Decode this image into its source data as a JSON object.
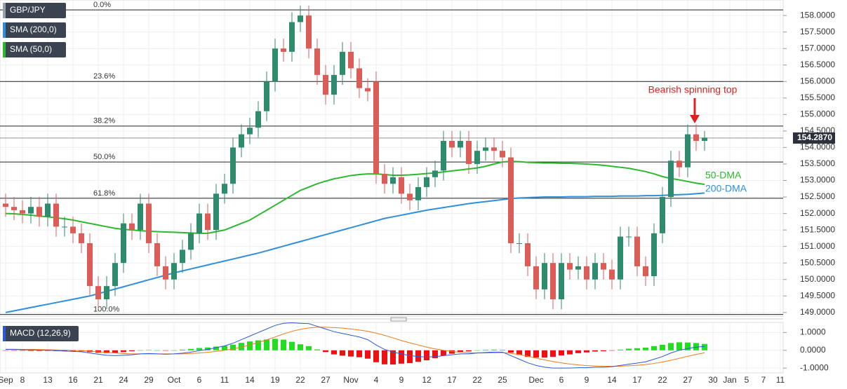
{
  "chart_data": {
    "type": "candlestick",
    "grid": true,
    "categories": [
      "Sep",
      null,
      "8",
      null,
      null,
      "13",
      null,
      null,
      "16",
      null,
      null,
      "21",
      null,
      null,
      "24",
      null,
      null,
      "29",
      null,
      null,
      "Oct",
      null,
      null,
      "6",
      null,
      null,
      "11",
      null,
      null,
      "14",
      null,
      null,
      "19",
      null,
      null,
      "22",
      null,
      null,
      "27",
      null,
      null,
      "Nov",
      null,
      null,
      "4",
      null,
      null,
      "9",
      null,
      null,
      "12",
      null,
      null,
      "17",
      null,
      null,
      "22",
      null,
      null,
      "25",
      null,
      null,
      null,
      "Dec",
      null,
      null,
      "6",
      null,
      null,
      "9",
      null,
      null,
      "14",
      null,
      null,
      "17",
      null,
      null,
      "22",
      null,
      null,
      "27",
      null,
      null,
      "30",
      null,
      "Jan",
      null,
      "5",
      null,
      "7",
      null,
      "11"
    ],
    "ohlc": {
      "name": "GBP/JPY",
      "up_color": "#2e8b6e",
      "down_color": "#dc5c57",
      "open": [
        152.3,
        152.2,
        152.1,
        152.0,
        152.2,
        151.9,
        152.3,
        151.6,
        151.6,
        151.4,
        151.1,
        149.8,
        149.4,
        149.8,
        150.5,
        151.7,
        151.5,
        152.3,
        151.1,
        150.4,
        150.0,
        150.5,
        150.9,
        151.4,
        152.0,
        151.5,
        152.6,
        152.9,
        154.0,
        154.4,
        154.6,
        155.1,
        156.0,
        157.0,
        156.9,
        157.8,
        158.0,
        157.0,
        156.2,
        155.6,
        156.2,
        156.9,
        156.4,
        155.8,
        156.0,
        153.2,
        152.9,
        153.1,
        152.6,
        152.4,
        152.8,
        153.1,
        153.3,
        154.2,
        154.0,
        154.2,
        153.5,
        153.9,
        154.0,
        153.9,
        153.7,
        151.1,
        151.1,
        150.4,
        149.7,
        150.5,
        149.4,
        150.5,
        150.3,
        150.4,
        150.0,
        150.5,
        150.3,
        150.0,
        151.3,
        151.3,
        150.4,
        150.1,
        151.4,
        152.5,
        153.6,
        153.4,
        154.4,
        154.2,
        null,
        null,
        null,
        null,
        null,
        null,
        null,
        null,
        null
      ],
      "high": [
        152.6,
        152.5,
        152.4,
        152.5,
        152.5,
        152.6,
        152.6,
        151.9,
        151.9,
        151.7,
        151.4,
        150.1,
        150.1,
        150.8,
        152.0,
        152.0,
        152.6,
        152.6,
        151.4,
        150.7,
        150.8,
        151.2,
        151.7,
        152.3,
        152.3,
        152.9,
        153.2,
        154.3,
        154.7,
        154.9,
        155.4,
        156.3,
        157.3,
        157.3,
        158.1,
        158.3,
        158.3,
        157.3,
        156.5,
        156.5,
        157.2,
        157.2,
        156.7,
        156.1,
        156.3,
        153.5,
        153.4,
        153.4,
        152.9,
        153.1,
        153.4,
        153.6,
        154.5,
        154.5,
        154.5,
        154.5,
        154.2,
        154.3,
        154.3,
        154.2,
        154.0,
        151.4,
        151.4,
        150.7,
        150.8,
        150.8,
        150.8,
        150.8,
        150.7,
        150.7,
        150.8,
        150.8,
        150.6,
        151.6,
        151.6,
        151.6,
        150.7,
        151.7,
        152.8,
        153.9,
        153.9,
        154.7,
        154.7,
        154.5,
        null,
        null,
        null,
        null,
        null,
        null,
        null,
        null,
        null
      ],
      "low": [
        151.9,
        151.8,
        151.7,
        151.7,
        151.6,
        151.6,
        151.3,
        151.3,
        151.1,
        150.8,
        149.5,
        149.1,
        149.1,
        149.5,
        150.2,
        151.2,
        151.2,
        150.8,
        150.1,
        149.7,
        149.7,
        150.2,
        150.6,
        151.1,
        151.2,
        151.2,
        152.3,
        152.6,
        153.7,
        154.1,
        154.3,
        154.8,
        155.7,
        156.6,
        156.6,
        157.5,
        156.7,
        155.9,
        155.3,
        155.3,
        155.9,
        156.1,
        155.5,
        155.4,
        152.9,
        152.6,
        152.6,
        152.3,
        152.1,
        152.1,
        152.5,
        152.8,
        153.0,
        153.7,
        153.7,
        153.2,
        153.2,
        153.6,
        153.6,
        153.4,
        150.8,
        150.8,
        150.1,
        149.4,
        149.4,
        149.1,
        149.1,
        150.0,
        150.0,
        149.7,
        149.7,
        150.0,
        149.7,
        149.7,
        151.0,
        150.1,
        149.8,
        149.8,
        151.1,
        152.2,
        153.1,
        153.1,
        153.9,
        153.9,
        null,
        null,
        null,
        null,
        null,
        null,
        null,
        null,
        null
      ],
      "close": [
        152.2,
        152.1,
        152.0,
        152.2,
        151.9,
        152.3,
        151.6,
        151.6,
        151.4,
        151.1,
        149.8,
        149.4,
        149.8,
        150.5,
        151.7,
        151.5,
        152.3,
        151.1,
        150.4,
        150.0,
        150.5,
        150.9,
        151.4,
        152.0,
        151.5,
        152.6,
        152.9,
        154.0,
        154.4,
        154.6,
        155.1,
        156.0,
        157.0,
        156.9,
        157.8,
        158.0,
        157.0,
        156.2,
        155.6,
        156.2,
        156.9,
        156.4,
        155.8,
        155.7,
        153.2,
        152.9,
        153.1,
        152.6,
        152.4,
        152.8,
        153.1,
        153.3,
        154.2,
        154.0,
        154.2,
        153.5,
        153.9,
        154.0,
        153.9,
        153.7,
        151.1,
        151.1,
        150.4,
        149.7,
        150.5,
        149.4,
        150.5,
        150.3,
        150.4,
        150.0,
        150.5,
        150.3,
        150.0,
        151.3,
        151.3,
        150.4,
        150.1,
        151.4,
        152.5,
        153.6,
        153.4,
        154.4,
        154.2,
        154.3,
        null,
        null,
        null,
        null,
        null,
        null,
        null,
        null,
        null
      ]
    },
    "series": [
      {
        "name": "SMA (200,0)",
        "color": "#2f8fdc",
        "values": [
          149.0,
          149.05,
          149.1,
          149.15,
          149.2,
          149.25,
          149.3,
          149.35,
          149.4,
          149.45,
          149.5,
          149.57,
          149.64,
          149.71,
          149.78,
          149.85,
          149.92,
          149.99,
          150.06,
          150.13,
          150.2,
          150.26,
          150.32,
          150.38,
          150.44,
          150.5,
          150.56,
          150.62,
          150.68,
          150.74,
          150.8,
          150.87,
          150.94,
          151.01,
          151.08,
          151.15,
          151.22,
          151.29,
          151.36,
          151.43,
          151.5,
          151.57,
          151.64,
          151.71,
          151.78,
          151.85,
          151.9,
          151.95,
          152.0,
          152.05,
          152.1,
          152.14,
          152.18,
          152.22,
          152.26,
          152.3,
          152.33,
          152.36,
          152.39,
          152.42,
          152.45,
          152.47,
          152.48,
          152.49,
          152.5,
          152.5,
          152.5,
          152.51,
          152.51,
          152.51,
          152.52,
          152.52,
          152.52,
          152.53,
          152.53,
          152.53,
          152.54,
          152.54,
          152.55,
          152.56,
          152.57,
          152.58,
          152.6,
          152.62,
          null,
          null,
          null,
          null,
          null,
          null,
          null,
          null,
          null
        ]
      },
      {
        "name": "SMA (50,0)",
        "color": "#2db82d",
        "values": [
          152.0,
          151.99,
          151.97,
          151.95,
          151.92,
          151.9,
          151.87,
          151.84,
          151.8,
          151.75,
          151.7,
          151.65,
          151.6,
          151.55,
          151.52,
          151.5,
          151.48,
          151.46,
          151.45,
          151.44,
          151.43,
          151.42,
          151.41,
          151.4,
          151.4,
          151.45,
          151.5,
          151.6,
          151.7,
          151.8,
          151.95,
          152.1,
          152.25,
          152.4,
          152.55,
          152.7,
          152.8,
          152.9,
          152.98,
          153.05,
          153.1,
          153.15,
          153.18,
          153.2,
          153.2,
          153.18,
          153.16,
          153.16,
          153.17,
          153.19,
          153.21,
          153.23,
          153.26,
          153.29,
          153.32,
          153.35,
          153.38,
          153.43,
          153.5,
          153.56,
          153.58,
          153.57,
          153.55,
          153.54,
          153.53,
          153.53,
          153.52,
          153.52,
          153.51,
          153.5,
          153.48,
          153.46,
          153.43,
          153.4,
          153.37,
          153.32,
          153.27,
          153.2,
          153.12,
          153.06,
          153.02,
          152.97,
          152.92,
          152.88,
          null,
          null,
          null,
          null,
          null,
          null,
          null,
          null,
          null
        ]
      }
    ],
    "ylim": [
      148.89,
      158.47
    ],
    "yticks": [
      {
        "value": 149,
        "label": "149.0000"
      },
      {
        "value": 149.5,
        "label": "149.5000"
      },
      {
        "value": 150,
        "label": "150.0000"
      },
      {
        "value": 150.5,
        "label": "150.5000"
      },
      {
        "value": 151,
        "label": "151.0000"
      },
      {
        "value": 151.5,
        "label": "151.5000"
      },
      {
        "value": 152,
        "label": "152.0000"
      },
      {
        "value": 152.5,
        "label": "152.5000"
      },
      {
        "value": 153,
        "label": "153.0000"
      },
      {
        "value": 153.5,
        "label": "153.5000"
      },
      {
        "value": 154,
        "label": "154.0000"
      },
      {
        "value": 154.5,
        "label": "154.5000"
      },
      {
        "value": 155,
        "label": "155.0000"
      },
      {
        "value": 155.5,
        "label": "155.5000"
      },
      {
        "value": 156,
        "label": "156.0000"
      },
      {
        "value": 156.5,
        "label": "156.5000"
      },
      {
        "value": 157,
        "label": "157.0000"
      },
      {
        "value": 157.5,
        "label": "157.5000"
      },
      {
        "value": 158,
        "label": "158.0000"
      }
    ],
    "last_price": {
      "value": 154.287,
      "label": "154.2870"
    },
    "fib_levels": [
      {
        "label": "0.0%",
        "value": 158.17
      },
      {
        "label": "23.6%",
        "value": 156.0
      },
      {
        "label": "38.2%",
        "value": 154.65
      },
      {
        "label": "50.0%",
        "value": 153.56
      },
      {
        "label": "61.8%",
        "value": 152.46
      },
      {
        "label": "100.0%",
        "value": 148.94
      }
    ],
    "annotations": [
      {
        "text": "Bearish spinning top",
        "color": "#e02020"
      },
      {
        "text": "50-DMA",
        "color": "#2db82d"
      },
      {
        "text": "200-DMA",
        "color": "#2f8fdc"
      }
    ],
    "macd": {
      "type": "macd",
      "name": "MACD (12,26,9)",
      "ylim": [
        -1.27,
        1.57
      ],
      "yticks": [
        {
          "value": 1,
          "label": "1.0000"
        },
        {
          "value": 0,
          "label": "0.0000"
        },
        {
          "value": -1,
          "label": "-1.0000"
        }
      ],
      "macd_line": {
        "color": "#2a5ad8",
        "values": [
          0.05,
          0.04,
          0.03,
          0.02,
          0.01,
          0.0,
          -0.02,
          -0.04,
          -0.06,
          -0.08,
          -0.15,
          -0.22,
          -0.28,
          -0.3,
          -0.28,
          -0.25,
          -0.2,
          -0.18,
          -0.2,
          -0.22,
          -0.2,
          -0.16,
          -0.1,
          -0.02,
          0.05,
          0.15,
          0.25,
          0.4,
          0.6,
          0.8,
          1.0,
          1.2,
          1.4,
          1.52,
          1.55,
          1.52,
          1.5,
          1.35,
          1.2,
          1.05,
          0.95,
          0.85,
          0.75,
          0.6,
          0.3,
          0.05,
          -0.1,
          -0.2,
          -0.3,
          -0.35,
          -0.38,
          -0.36,
          -0.3,
          -0.25,
          -0.2,
          -0.2,
          -0.15,
          -0.12,
          -0.1,
          -0.1,
          -0.3,
          -0.5,
          -0.7,
          -0.85,
          -0.95,
          -1.0,
          -1.0,
          -1.0,
          -0.98,
          -0.98,
          -0.95,
          -0.95,
          -0.92,
          -0.85,
          -0.78,
          -0.72,
          -0.65,
          -0.5,
          -0.35,
          -0.15,
          0.0,
          0.1,
          0.18,
          0.22,
          null,
          null,
          null,
          null,
          null,
          null,
          null,
          null,
          null
        ]
      },
      "signal": {
        "color": "#f07a1a",
        "values": [
          0.06,
          0.06,
          0.05,
          0.05,
          0.04,
          0.03,
          0.02,
          0.01,
          -0.01,
          -0.02,
          -0.05,
          -0.08,
          -0.12,
          -0.15,
          -0.18,
          -0.2,
          -0.2,
          -0.2,
          -0.2,
          -0.2,
          -0.2,
          -0.2,
          -0.18,
          -0.15,
          -0.11,
          -0.06,
          0.0,
          0.08,
          0.18,
          0.3,
          0.44,
          0.59,
          0.75,
          0.92,
          1.07,
          1.18,
          1.26,
          1.3,
          1.3,
          1.28,
          1.25,
          1.2,
          1.14,
          1.07,
          0.97,
          0.84,
          0.7,
          0.55,
          0.42,
          0.3,
          0.18,
          0.08,
          0.0,
          -0.06,
          -0.11,
          -0.14,
          -0.15,
          -0.15,
          -0.14,
          -0.13,
          -0.17,
          -0.24,
          -0.33,
          -0.44,
          -0.54,
          -0.63,
          -0.71,
          -0.77,
          -0.82,
          -0.86,
          -0.88,
          -0.9,
          -0.9,
          -0.89,
          -0.87,
          -0.84,
          -0.8,
          -0.74,
          -0.66,
          -0.56,
          -0.45,
          -0.34,
          -0.23,
          -0.14,
          null,
          null,
          null,
          null,
          null,
          null,
          null,
          null,
          null
        ]
      },
      "histogram": {
        "up_color": "#22dd22",
        "down_color": "#ee1111",
        "values": [
          -0.01,
          -0.02,
          -0.02,
          -0.03,
          -0.03,
          -0.03,
          -0.04,
          -0.05,
          -0.05,
          -0.06,
          -0.1,
          -0.14,
          -0.16,
          -0.15,
          -0.1,
          -0.05,
          0.0,
          0.02,
          0.0,
          -0.02,
          0.0,
          0.04,
          0.08,
          0.13,
          0.16,
          0.21,
          0.25,
          0.32,
          0.42,
          0.5,
          0.56,
          0.61,
          0.65,
          0.6,
          0.48,
          0.34,
          0.24,
          0.05,
          -0.1,
          -0.23,
          -0.3,
          -0.35,
          -0.39,
          -0.47,
          -0.67,
          -0.79,
          -0.8,
          -0.75,
          -0.72,
          -0.65,
          -0.56,
          -0.44,
          -0.3,
          -0.19,
          -0.09,
          -0.06,
          0.0,
          0.03,
          0.04,
          0.03,
          -0.13,
          -0.26,
          -0.37,
          -0.41,
          -0.41,
          -0.37,
          -0.29,
          -0.23,
          -0.16,
          -0.12,
          -0.07,
          -0.05,
          -0.02,
          0.04,
          0.09,
          0.12,
          0.15,
          0.24,
          0.31,
          0.41,
          0.45,
          0.44,
          0.41,
          0.36,
          null,
          null,
          null,
          null,
          null,
          null,
          null,
          null,
          null
        ]
      }
    }
  }
}
